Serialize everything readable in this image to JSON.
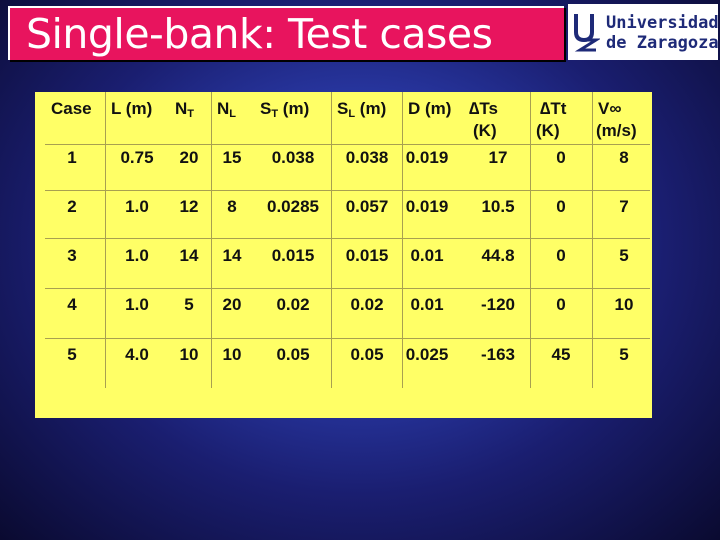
{
  "title": "Single-bank: Test cases",
  "logo": {
    "line1": "Universidad",
    "line2": "de Zaragoza"
  },
  "table": {
    "headers": {
      "case": "Case",
      "l": "L (m)",
      "nt_main": "N",
      "nt_sub": "T",
      "nl_main": "N",
      "nl_sub": "L",
      "st_main": "S",
      "st_sub": "T",
      "st_unit": " (m)",
      "sl_main": "S",
      "sl_sub": "L",
      "sl_unit": " (m)",
      "d": "D (m)",
      "dts_line1": "∆Ts",
      "dts_line2": "(K)",
      "dtt_line1": "∆Tt",
      "dtt_line2": "(K)",
      "v_line1": "V∞",
      "v_line2": "(m/s)"
    },
    "rows": [
      [
        "1",
        "0.75",
        "20",
        "15",
        "0.038",
        "0.038",
        "0.019",
        "17",
        "0",
        "8"
      ],
      [
        "2",
        "1.0",
        "12",
        "8",
        "0.0285",
        "0.057",
        "0.019",
        "10.5",
        "0",
        "7"
      ],
      [
        "3",
        "1.0",
        "14",
        "14",
        "0.015",
        "0.015",
        "0.01",
        "44.8",
        "0",
        "5"
      ],
      [
        "4",
        "1.0",
        "5",
        "20",
        "0.02",
        "0.02",
        "0.01",
        "-120",
        "0",
        "10"
      ],
      [
        "5",
        "4.0",
        "10",
        "10",
        "0.05",
        "0.05",
        "0.025",
        "-163",
        "45",
        "5"
      ]
    ]
  }
}
